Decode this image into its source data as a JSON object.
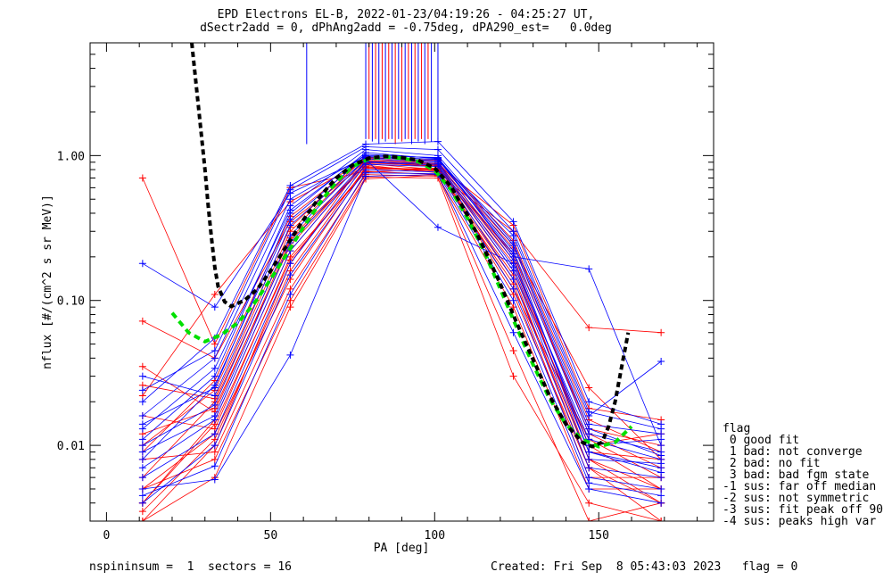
{
  "header": {
    "title_line1": "EPD Electrons EL-B, 2022-01-23/04:19:26 - 04:25:27 UT,",
    "title_line2": "dSectr2add = 0, dPhAng2add = -0.75deg, dPA290_est=   0.0deg"
  },
  "footer": {
    "left": "nspininsum =  1  sectors = 16",
    "right": "Created: Fri Sep  8 05:43:03 2023   flag = 0"
  },
  "flag_legend": {
    "title": "flag",
    "items": [
      " 0 good fit",
      " 1 bad: not converge",
      " 2 bad: no fit",
      " 3 bad: bad fgm state",
      "-1 sus: far off median",
      "-2 sus: not symmetric",
      "-3 sus: fit peak off 90",
      "-4 sus: peaks high var"
    ]
  },
  "colors": {
    "series_a": "#ff0000",
    "series_b": "#0000ff",
    "median_fit": "#00e000",
    "model_fit": "#000000",
    "spike_mix": "#a000a0"
  },
  "chart_data": {
    "type": "line",
    "title": "EPD Electrons EL-B, 2022-01-23/04:19:26 - 04:25:27 UT,",
    "subtitle": "dSectr2add = 0, dPhAng2add = -0.75deg, dPA290_est=   0.0deg",
    "xlabel": "PA [deg]",
    "ylabel": "nflux [#/(cm^2 s sr MeV)]",
    "xlim": [
      -5,
      185
    ],
    "ylim": [
      0.003,
      6.0
    ],
    "yscale": "log",
    "xticks": [
      0,
      50,
      100,
      150
    ],
    "xtick_labels": [
      "0",
      "50",
      "100",
      "150"
    ],
    "yticks": [
      0.01,
      0.1,
      1.0
    ],
    "ytick_labels": [
      "0.01",
      "0.10",
      "1.00"
    ],
    "pa_bins": [
      11,
      33,
      56,
      79,
      101,
      124,
      147,
      169
    ],
    "series": [
      {
        "color": "red",
        "values": [
          0.005,
          0.012,
          0.14,
          0.82,
          0.8,
          0.11,
          0.007,
          0.004
        ]
      },
      {
        "color": "red",
        "values": [
          0.004,
          0.015,
          0.22,
          0.9,
          0.84,
          0.16,
          0.01,
          0.005
        ]
      },
      {
        "color": "red",
        "values": [
          0.003,
          0.01,
          0.18,
          0.95,
          0.88,
          0.2,
          0.008,
          0.004
        ]
      },
      {
        "color": "red",
        "values": [
          0.006,
          0.02,
          0.27,
          0.86,
          0.76,
          0.13,
          0.006,
          0.006
        ]
      },
      {
        "color": "red",
        "values": [
          0.008,
          0.009,
          0.12,
          0.74,
          0.72,
          0.09,
          0.005,
          0.005
        ]
      },
      {
        "color": "red",
        "values": [
          0.01,
          0.024,
          0.32,
          0.98,
          0.9,
          0.24,
          0.012,
          0.007
        ]
      },
      {
        "color": "red",
        "values": [
          0.004,
          0.014,
          0.19,
          0.8,
          0.82,
          0.18,
          0.009,
          0.008
        ]
      },
      {
        "color": "red",
        "values": [
          0.7,
          0.05,
          0.6,
          0.78,
          0.74,
          0.3,
          0.065,
          0.06
        ]
      },
      {
        "color": "red",
        "values": [
          0.022,
          0.11,
          0.48,
          0.92,
          0.86,
          0.33,
          0.018,
          0.015
        ]
      },
      {
        "color": "red",
        "values": [
          0.072,
          0.04,
          0.35,
          0.88,
          0.8,
          0.21,
          0.013,
          0.01
        ]
      },
      {
        "color": "red",
        "values": [
          0.035,
          0.017,
          0.26,
          0.84,
          0.79,
          0.15,
          0.007,
          0.003
        ]
      },
      {
        "color": "red",
        "values": [
          0.016,
          0.013,
          0.2,
          0.77,
          0.81,
          0.12,
          0.011,
          0.006
        ]
      },
      {
        "color": "red",
        "values": [
          0.009,
          0.028,
          0.38,
          0.96,
          0.93,
          0.26,
          0.015,
          0.009
        ]
      },
      {
        "color": "red",
        "values": [
          0.005,
          0.008,
          0.1,
          0.71,
          0.7,
          0.03,
          0.004,
          0.003
        ]
      },
      {
        "color": "red",
        "values": [
          0.003,
          0.006,
          0.09,
          0.69,
          0.73,
          0.045,
          0.003,
          0.004
        ]
      },
      {
        "color": "red",
        "values": [
          0.012,
          0.018,
          0.24,
          0.89,
          0.85,
          0.19,
          0.01,
          0.012
        ]
      },
      {
        "color": "red",
        "values": [
          0.026,
          0.021,
          0.3,
          0.93,
          0.87,
          0.23,
          0.025,
          0.008
        ]
      },
      {
        "color": "red",
        "values": [
          0.0035,
          0.011,
          0.16,
          0.83,
          0.78,
          0.14,
          0.008,
          0.005
        ]
      },
      {
        "color": "blue",
        "values": [
          0.18,
          0.09,
          0.55,
          0.97,
          0.92,
          0.28,
          0.016,
          0.038
        ]
      },
      {
        "color": "blue",
        "values": [
          0.014,
          0.025,
          0.4,
          1.05,
          0.95,
          0.22,
          0.012,
          0.009
        ]
      },
      {
        "color": "blue",
        "values": [
          0.009,
          0.016,
          0.25,
          0.91,
          0.88,
          0.17,
          0.009,
          0.007
        ]
      },
      {
        "color": "blue",
        "values": [
          0.006,
          0.012,
          0.18,
          0.87,
          0.84,
          0.14,
          0.007,
          0.006
        ]
      },
      {
        "color": "blue",
        "values": [
          0.011,
          0.03,
          0.45,
          1.1,
          1.0,
          0.25,
          0.014,
          0.012
        ]
      },
      {
        "color": "blue",
        "values": [
          0.02,
          0.055,
          0.62,
          1.2,
          1.25,
          0.35,
          0.02,
          0.014
        ]
      },
      {
        "color": "blue",
        "values": [
          0.004,
          0.01,
          0.15,
          0.8,
          0.77,
          0.12,
          0.006,
          0.005
        ]
      },
      {
        "color": "blue",
        "values": [
          0.016,
          0.04,
          0.5,
          1.0,
          0.97,
          0.2,
          0.165,
          0.01
        ]
      },
      {
        "color": "blue",
        "values": [
          0.03,
          0.022,
          0.33,
          0.94,
          0.32,
          0.18,
          0.011,
          0.008
        ]
      },
      {
        "color": "blue",
        "values": [
          0.007,
          0.015,
          0.22,
          0.9,
          0.86,
          0.16,
          0.008,
          0.0075
        ]
      },
      {
        "color": "blue",
        "values": [
          0.005,
          0.0058,
          0.042,
          0.72,
          0.74,
          0.06,
          0.005,
          0.004
        ]
      },
      {
        "color": "blue",
        "values": [
          0.01,
          0.019,
          0.28,
          0.95,
          0.9,
          0.19,
          0.01,
          0.011
        ]
      },
      {
        "color": "blue",
        "values": [
          0.013,
          0.034,
          0.42,
          1.02,
          0.96,
          0.24,
          0.013,
          0.0085
        ]
      },
      {
        "color": "blue",
        "values": [
          0.0045,
          0.0072,
          0.11,
          0.76,
          0.75,
          0.1,
          0.0055,
          0.0045
        ]
      },
      {
        "color": "blue",
        "values": [
          0.008,
          0.026,
          0.36,
          0.99,
          0.94,
          0.21,
          0.009,
          0.0065
        ]
      },
      {
        "color": "blue",
        "values": [
          0.024,
          0.045,
          0.58,
          1.15,
          1.1,
          0.3,
          0.017,
          0.013
        ]
      }
    ],
    "median_fit": {
      "name": "",
      "x": [
        20,
        25,
        30,
        35,
        40,
        45,
        50,
        55,
        60,
        65,
        70,
        75,
        80,
        85,
        90,
        95,
        100,
        105,
        110,
        115,
        120,
        125,
        130,
        135,
        140,
        145,
        150,
        155,
        160
      ],
      "y": [
        0.082,
        0.06,
        0.052,
        0.058,
        0.07,
        0.095,
        0.14,
        0.21,
        0.32,
        0.47,
        0.66,
        0.84,
        0.95,
        0.98,
        0.96,
        0.91,
        0.79,
        0.58,
        0.37,
        0.22,
        0.12,
        0.065,
        0.036,
        0.021,
        0.014,
        0.011,
        0.0098,
        0.0105,
        0.0135
      ]
    },
    "model_fit": {
      "name": "",
      "x": [
        26,
        28,
        30,
        31,
        32,
        33,
        34,
        36,
        38,
        42,
        46,
        50,
        55,
        60,
        65,
        70,
        75,
        80,
        85,
        90,
        95,
        100,
        105,
        110,
        115,
        120,
        125,
        130,
        135,
        140,
        145,
        148,
        151,
        153,
        155,
        157,
        159
      ],
      "y": [
        6.0,
        2.2,
        0.8,
        0.45,
        0.27,
        0.17,
        0.125,
        0.098,
        0.091,
        0.1,
        0.12,
        0.16,
        0.24,
        0.36,
        0.52,
        0.7,
        0.86,
        0.96,
        0.99,
        0.97,
        0.93,
        0.82,
        0.61,
        0.39,
        0.23,
        0.13,
        0.07,
        0.039,
        0.022,
        0.014,
        0.0105,
        0.0098,
        0.0105,
        0.0135,
        0.02,
        0.035,
        0.06
      ]
    },
    "spikes": {
      "x": [
        61,
        79,
        80,
        81,
        82,
        83,
        84,
        85,
        86,
        87,
        88,
        89,
        90,
        91,
        92,
        93,
        94,
        95,
        96,
        97,
        98,
        99,
        101
      ],
      "from": [
        1.2,
        1.3,
        1.3,
        1.25,
        1.3,
        1.2,
        1.3,
        1.25,
        1.3,
        1.3,
        1.2,
        1.3,
        1.25,
        1.3,
        1.3,
        1.2,
        1.3,
        1.25,
        1.3,
        1.2,
        1.3,
        1.25,
        1.3
      ],
      "colors": [
        "blue",
        "blue",
        "red",
        "blue",
        "red",
        "blue",
        "red",
        "blue",
        "red",
        "blue",
        "red",
        "blue",
        "red",
        "blue",
        "red",
        "blue",
        "red",
        "blue",
        "red",
        "blue",
        "red",
        "blue",
        "blue"
      ]
    }
  }
}
